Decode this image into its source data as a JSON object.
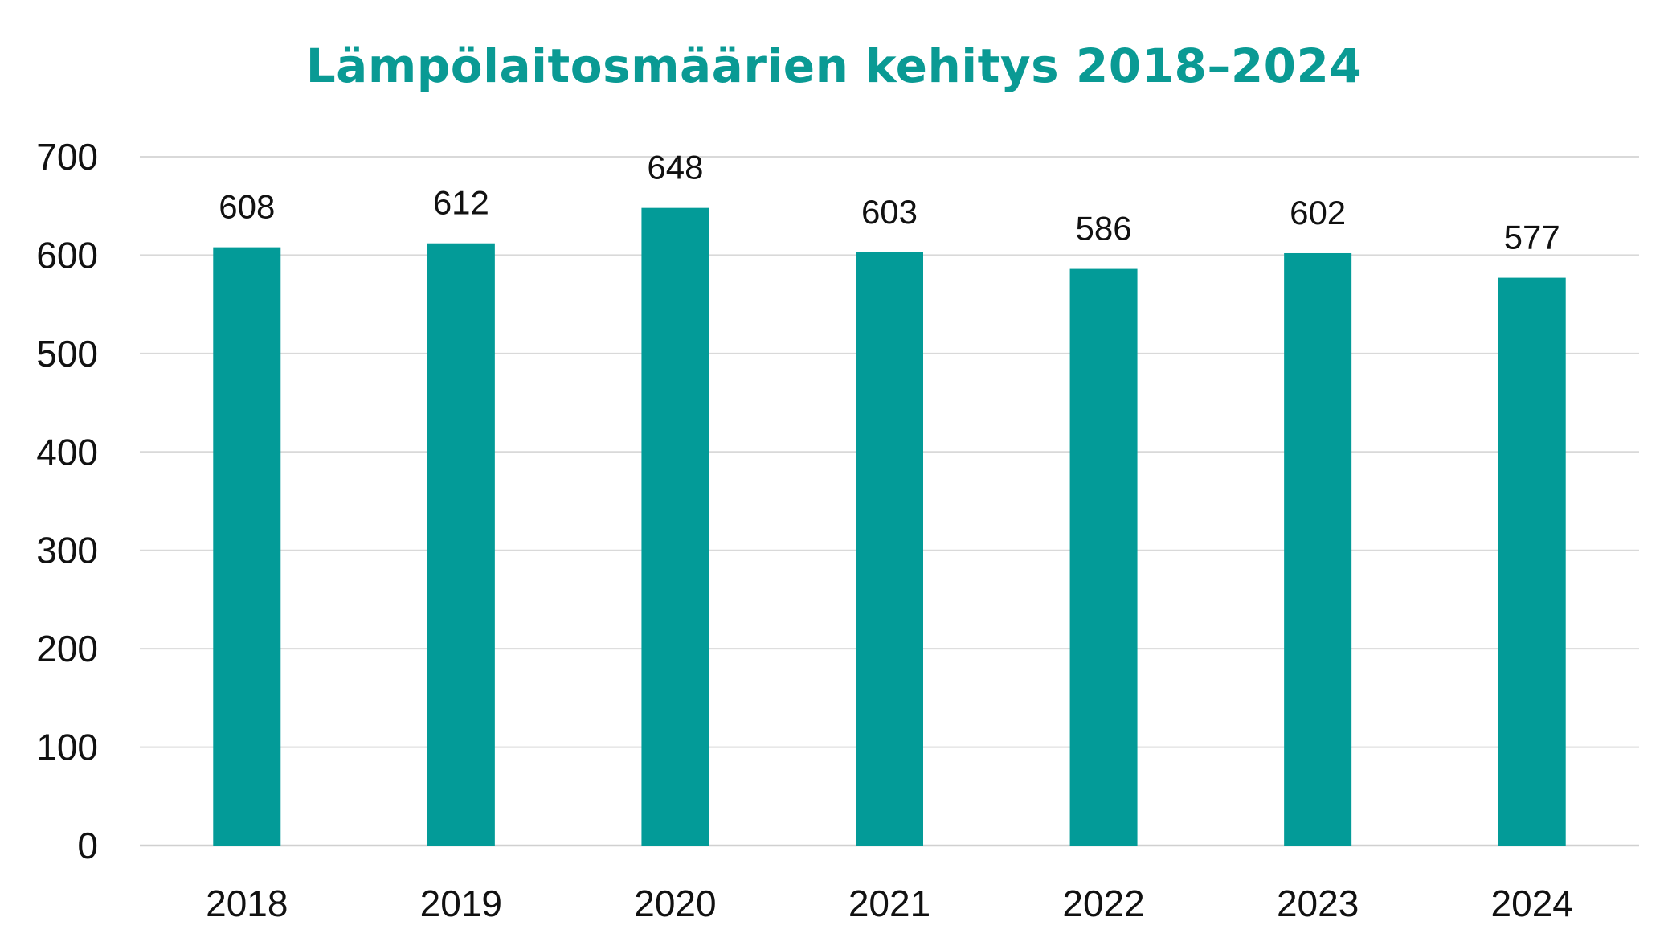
{
  "chart_data": {
    "type": "bar",
    "title": "Lämpölaitosmäärien kehitys 2018–2024",
    "categories": [
      "2018",
      "2019",
      "2020",
      "2021",
      "2022",
      "2023",
      "2024"
    ],
    "values": [
      608,
      612,
      648,
      603,
      586,
      602,
      577
    ],
    "data_labels": [
      "608",
      "612",
      "648",
      "603",
      "586",
      "602",
      "577"
    ],
    "ylim": [
      0,
      700
    ],
    "yticks": [
      0,
      100,
      200,
      300,
      400,
      500,
      600,
      700
    ],
    "ytick_labels": [
      "0",
      "100",
      "200",
      "300",
      "400",
      "500",
      "600",
      "700"
    ],
    "grid": true,
    "legend": "none",
    "colors": {
      "bar": "#039b98",
      "title": "#0a9a94"
    }
  }
}
